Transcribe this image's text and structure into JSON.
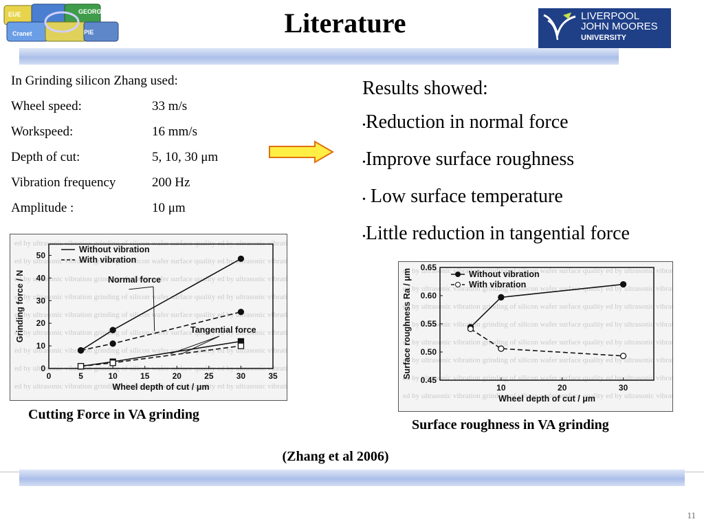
{
  "slide": {
    "title": "Literature",
    "logo_right_lines": [
      "LIVERPOOL",
      "JOHN MOORES",
      "UNIVERSITY"
    ],
    "logo_left_words": [
      "EUE",
      "GEORG",
      "PIE",
      "Cranet"
    ],
    "page_number": "11"
  },
  "params": {
    "intro": "In Grinding silicon Zhang used:",
    "rows": [
      {
        "label": "Wheel speed:",
        "value": "33 m/s"
      },
      {
        "label": "Workspeed:",
        "value": "16 mm/s"
      },
      {
        "label": "Depth of cut:",
        "value": "5, 10, 30 μm"
      },
      {
        "label": "Vibration frequency",
        "value": "200 Hz"
      },
      {
        "label": "Amplitude :",
        "value": "10 μm"
      }
    ]
  },
  "results": {
    "heading": "Results showed:",
    "bullet": "•",
    "items": [
      "Reduction in normal force",
      "Improve surface roughness",
      " Low surface temperature",
      "Little reduction in tangential force"
    ]
  },
  "colors": {
    "arrow_fill": "#ffee44",
    "arrow_stroke": "#e07010",
    "logo_blue": "#1f3f87",
    "band": "#b7c8ec"
  },
  "chart_data": [
    {
      "type": "line",
      "caption": "Cutting Force in VA grinding",
      "xlabel": "Wheel depth of cut / μm",
      "ylabel": "Grinding force / N",
      "xlim": [
        0,
        35
      ],
      "ylim": [
        0,
        55
      ],
      "xticks": [
        0,
        5,
        10,
        15,
        20,
        25,
        30,
        35
      ],
      "yticks": [
        0,
        10,
        20,
        30,
        40,
        50
      ],
      "legend": [
        "Without vibration",
        "With vibration"
      ],
      "legend_position": "top-left",
      "annotations": [
        "Normal force",
        "Tangential force"
      ],
      "series": [
        {
          "name": "Without vibration",
          "x": [
            5,
            10,
            30
          ],
          "values": [
            8,
            17,
            48.5
          ]
        },
        {
          "name": "With vibration",
          "x": [
            5,
            10,
            30
          ],
          "values": [
            8,
            11,
            25
          ]
        },
        {
          "name": "Without vibration",
          "x": [
            5,
            10,
            30
          ],
          "values": [
            1,
            3,
            12
          ]
        },
        {
          "name": "With vibration",
          "x": [
            5,
            10,
            30
          ],
          "values": [
            1,
            2.5,
            10
          ]
        }
      ]
    },
    {
      "type": "line",
      "caption": "Surface roughness in VA grinding",
      "xlabel": "Wheel depth of cut / μm",
      "ylabel": "Surface roughness Ra / μm",
      "xlim": [
        0,
        35
      ],
      "ylim": [
        0.45,
        0.65
      ],
      "xticks": [
        10,
        20,
        30
      ],
      "yticks": [
        0.45,
        0.5,
        0.55,
        0.6,
        0.65
      ],
      "legend": [
        "Without vibration",
        "With vibration"
      ],
      "legend_position": "top-left",
      "series": [
        {
          "name": "Without vibration",
          "x": [
            5,
            10,
            30
          ],
          "values": [
            0.544,
            0.597,
            0.62
          ]
        },
        {
          "name": "With vibration",
          "x": [
            5,
            10,
            30
          ],
          "values": [
            0.541,
            0.506,
            0.493
          ]
        }
      ]
    }
  ],
  "citation": "(Zhang et al 2006)"
}
